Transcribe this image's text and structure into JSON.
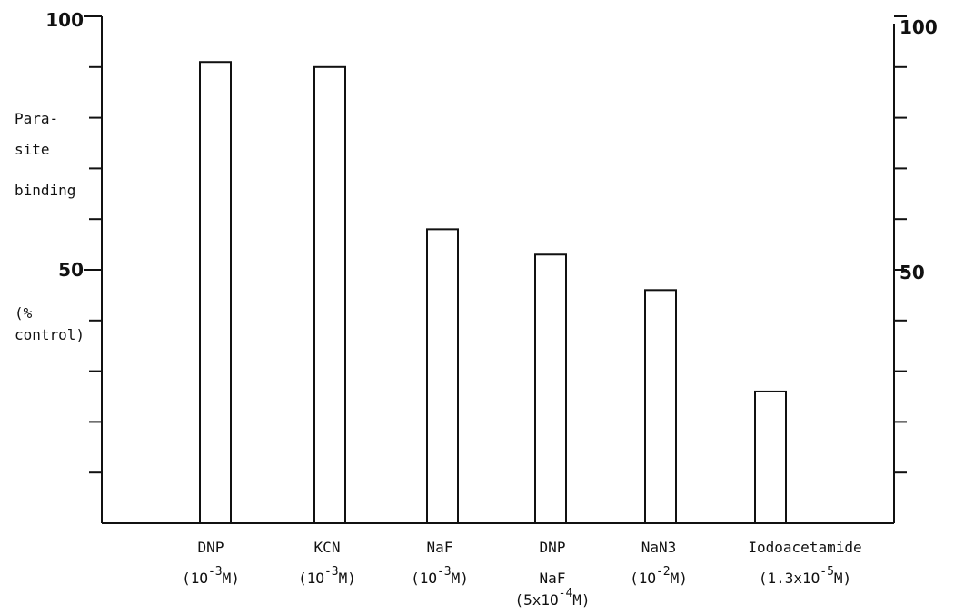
{
  "chart_data": {
    "type": "bar",
    "ylabel_lines": [
      "Para-",
      "site",
      "binding",
      "(%",
      "control)"
    ],
    "ylim": [
      0,
      100
    ],
    "y_tick_labels": [
      "100",
      "50"
    ],
    "minor_tick_step": 10,
    "axes": "left and right",
    "grid": false,
    "categories": [
      {
        "lines": [
          {
            "text": "DNP"
          },
          {
            "text": "(1O",
            "sup": "-3",
            "tail": "M)"
          }
        ]
      },
      {
        "lines": [
          {
            "text": "KCN"
          },
          {
            "text": "(1O",
            "sup": "-3",
            "tail": "M)"
          }
        ]
      },
      {
        "lines": [
          {
            "text": "NaF"
          },
          {
            "text": "(1O",
            "sup": "-3",
            "tail": "M)"
          }
        ]
      },
      {
        "lines": [
          {
            "text": "DNP"
          },
          {
            "text": "NaF"
          },
          {
            "text": "(5x1O",
            "sup": "-4",
            "tail": "M)"
          }
        ]
      },
      {
        "lines": [
          {
            "text": "NaN3"
          },
          {
            "text": "(1O",
            "sup": "-2",
            "tail": "M)"
          }
        ]
      },
      {
        "lines": [
          {
            "text": "Iodoacetamide"
          },
          {
            "text": "(1.3x1O",
            "sup": "-5",
            "tail": "M)"
          }
        ]
      }
    ],
    "values": [
      91,
      90,
      58,
      53,
      46,
      26
    ]
  }
}
